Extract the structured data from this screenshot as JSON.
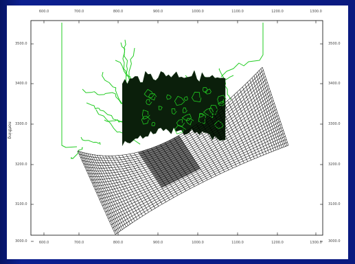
{
  "figure": {
    "y_axis_title": "northing",
    "x_tick_labels": [
      "600.0",
      "700.0",
      "800.0",
      "900.0",
      "1000.0",
      "1100.0",
      "1200.0",
      "1300.0"
    ],
    "bottom_tick_labels": [
      "600.0",
      "700.0",
      "800.0",
      "900.0",
      "1000.0",
      "1100.0",
      "1200.0",
      "1300.0"
    ],
    "left_tick_labels": [
      "3500.0",
      "3400.0",
      "3300.0",
      "3200.0",
      "3100.0",
      "3000.0"
    ],
    "right_tick_labels": [
      "3500.0",
      "3400.0",
      "3300.0",
      "3200.0",
      "3100.0",
      "3000.0"
    ],
    "colors": {
      "background": "#0a1a80",
      "panel": "#ffffff",
      "coastline": "#22cc22",
      "grid": "#000000"
    }
  }
}
